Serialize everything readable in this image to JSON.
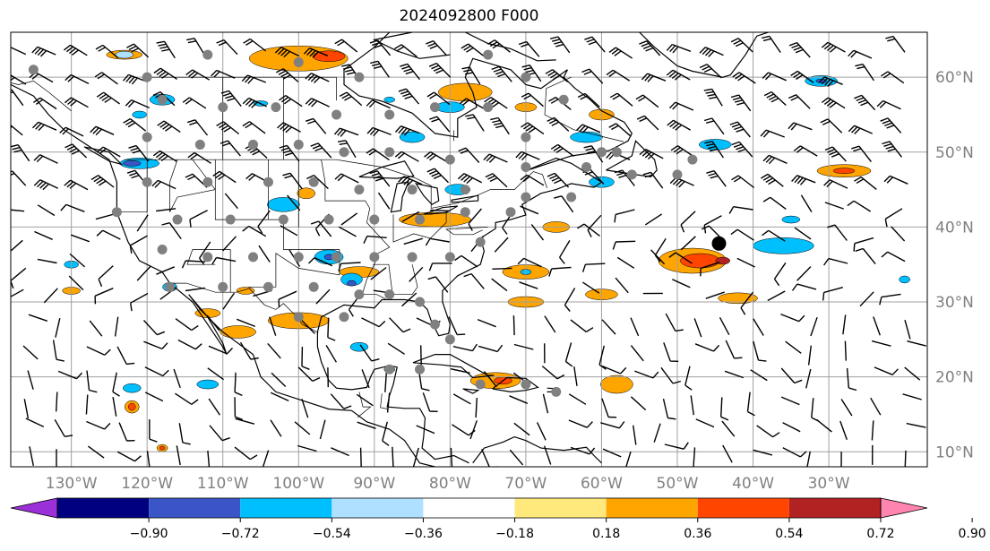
{
  "title": "2024092800 F000",
  "map": {
    "lon_range": [
      -138,
      -17
    ],
    "lat_range": [
      8,
      66
    ],
    "lat_ticks": [
      {
        "value": 60,
        "label": "60°N"
      },
      {
        "value": 50,
        "label": "50°N"
      },
      {
        "value": 40,
        "label": "40°N"
      },
      {
        "value": 30,
        "label": "30°N"
      },
      {
        "value": 20,
        "label": "20°N"
      },
      {
        "value": 10,
        "label": "10°N"
      }
    ],
    "lon_ticks": [
      {
        "value": -130,
        "label": "130°W"
      },
      {
        "value": -120,
        "label": "120°W"
      },
      {
        "value": -110,
        "label": "110°W"
      },
      {
        "value": -100,
        "label": "100°W"
      },
      {
        "value": -90,
        "label": "90°W"
      },
      {
        "value": -80,
        "label": "80°W"
      },
      {
        "value": -70,
        "label": "70°W"
      },
      {
        "value": -60,
        "label": "60°W"
      },
      {
        "value": -50,
        "label": "50°W"
      },
      {
        "value": -40,
        "label": "40°W"
      },
      {
        "value": -30,
        "label": "30°W"
      }
    ],
    "grid": true,
    "storm_marker": {
      "lon": -44.5,
      "lat": 37.8
    }
  },
  "colorbar": {
    "ticks": [
      "−0.90",
      "−0.72",
      "−0.54",
      "−0.36",
      "−0.18",
      "0.18",
      "0.36",
      "0.54",
      "0.72",
      "0.90"
    ],
    "colors": [
      "#9b30d9",
      "#000080",
      "#3a55c8",
      "#00bfff",
      "#b0e0ff",
      "#ffffff",
      "#ffe87c",
      "#ffa500",
      "#ff4500",
      "#b22222",
      "#ff85b0"
    ],
    "extend": "both"
  },
  "colors": {
    "gridline": "#a0a0a0",
    "coastline": "#000000",
    "tick_label": "#808080"
  }
}
